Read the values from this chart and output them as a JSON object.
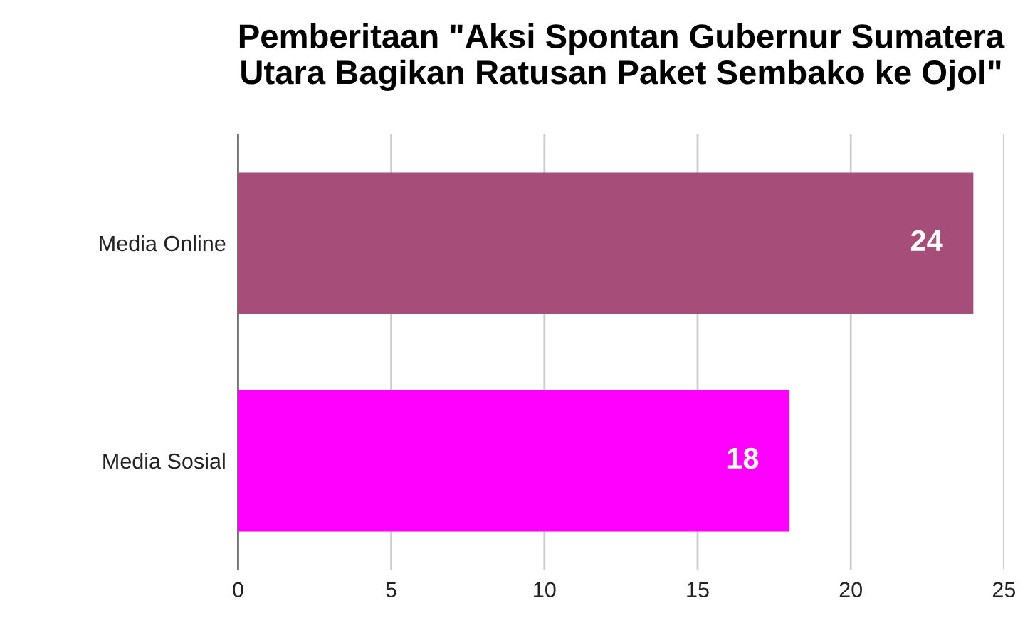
{
  "chart_data": {
    "type": "bar",
    "orientation": "horizontal",
    "title": "Pemberitaan \"Aksi Spontan Gubernur Sumatera Utara Bagikan Ratusan Paket Sembako ke Ojol\"",
    "categories": [
      "Media Online",
      "Media Sosial"
    ],
    "values": [
      24,
      18
    ],
    "colors": [
      "#a64d79",
      "#ff00ff"
    ],
    "xlim": [
      0,
      25
    ],
    "xticks": [
      0,
      5,
      10,
      15,
      20,
      25
    ],
    "grid": "x",
    "data_labels": true
  }
}
